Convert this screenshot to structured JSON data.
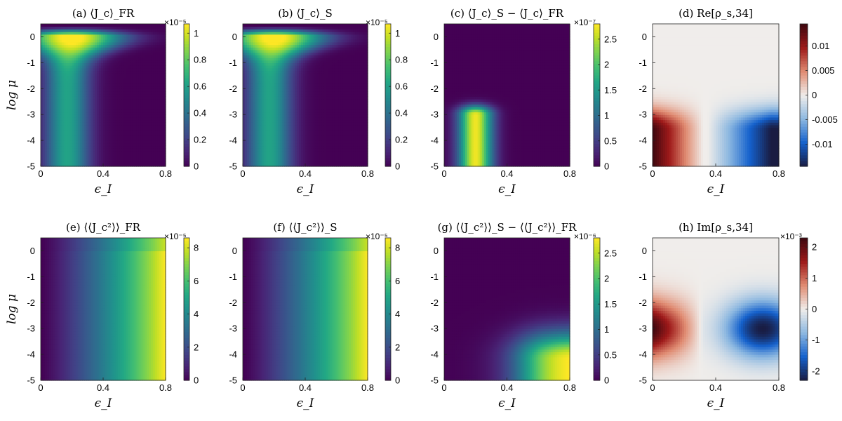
{
  "chart_data": [
    {
      "type": "heatmap",
      "panel": "a",
      "title": "(a) ⟨J_c⟩_FR",
      "xlabel": "ϵ_I",
      "ylabel": "log μ",
      "xlim": [
        0,
        0.8
      ],
      "ylim": [
        -5,
        0.5
      ],
      "x_ticks": [
        "0",
        "0.4",
        "0.8"
      ],
      "y_ticks": [
        "0",
        "-1",
        "-2",
        "-3",
        "-4",
        "-5"
      ],
      "colormap": "viridis",
      "colorbar_ticks": [
        "1",
        "0.8",
        "0.6",
        "0.4",
        "0.2",
        "0"
      ],
      "colorbar_multiplier": "×10⁻⁵",
      "clim": [
        0,
        1.07
      ],
      "pattern": "peak"
    },
    {
      "type": "heatmap",
      "panel": "b",
      "title": "(b) ⟨J_c⟩_S",
      "xlabel": "ϵ_I",
      "ylabel": "",
      "xlim": [
        0,
        0.8
      ],
      "ylim": [
        -5,
        0.5
      ],
      "x_ticks": [
        "0",
        "0.4",
        "0.8"
      ],
      "y_ticks": [
        "0",
        "-1",
        "-2",
        "-3",
        "-4",
        "-5"
      ],
      "colormap": "viridis",
      "colorbar_ticks": [
        "1",
        "0.8",
        "0.6",
        "0.4",
        "0.2",
        "0"
      ],
      "colorbar_multiplier": "×10⁻⁵",
      "clim": [
        0,
        1.07
      ],
      "pattern": "peak"
    },
    {
      "type": "heatmap",
      "panel": "c",
      "title": "(c) ⟨J_c⟩_S − ⟨J_c⟩_FR",
      "xlabel": "ϵ_I",
      "ylabel": "",
      "xlim": [
        0,
        0.8
      ],
      "ylim": [
        -5,
        0.5
      ],
      "x_ticks": [
        "0",
        "0.4",
        "0.8"
      ],
      "y_ticks": [
        "0",
        "-1",
        "-2",
        "-3",
        "-4",
        "-5"
      ],
      "colormap": "viridis",
      "colorbar_ticks": [
        "2.5",
        "2",
        "1.5",
        "1",
        "0.5",
        "0"
      ],
      "colorbar_multiplier": "×10⁻⁷",
      "clim": [
        0,
        2.8
      ],
      "pattern": "blob"
    },
    {
      "type": "heatmap",
      "panel": "d",
      "title": "(d) Re[ρ_s,34]",
      "xlabel": "ϵ_I",
      "ylabel": "",
      "xlim": [
        0,
        0.8
      ],
      "ylim": [
        -5,
        0.5
      ],
      "x_ticks": [
        "0",
        "0.4",
        "0.8"
      ],
      "y_ticks": [
        "0",
        "-1",
        "-2",
        "-3",
        "-4",
        "-5"
      ],
      "colormap": "diverging red-white-blue",
      "colorbar_ticks": [
        "0.01",
        "0.005",
        "0",
        "-0.005",
        "-0.01"
      ],
      "colorbar_multiplier": "",
      "clim": [
        -0.0145,
        0.0145
      ],
      "pattern": "div_low"
    },
    {
      "type": "heatmap",
      "panel": "e",
      "title": "(e) ⟨⟨J_c²⟩⟩_FR",
      "xlabel": "ϵ_I",
      "ylabel": "log μ",
      "xlim": [
        0,
        0.8
      ],
      "ylim": [
        -5,
        0.5
      ],
      "x_ticks": [
        "0",
        "0.4",
        "0.8"
      ],
      "y_ticks": [
        "0",
        "-1",
        "-2",
        "-3",
        "-4",
        "-5"
      ],
      "colormap": "viridis",
      "colorbar_ticks": [
        "8",
        "6",
        "4",
        "2",
        "0"
      ],
      "colorbar_multiplier": "×10⁻⁵",
      "clim": [
        0,
        8.6
      ],
      "pattern": "ramp"
    },
    {
      "type": "heatmap",
      "panel": "f",
      "title": "(f) ⟨⟨J_c²⟩⟩_S",
      "xlabel": "ϵ_I",
      "ylabel": "",
      "xlim": [
        0,
        0.8
      ],
      "ylim": [
        -5,
        0.5
      ],
      "x_ticks": [
        "0",
        "0.4",
        "0.8"
      ],
      "y_ticks": [
        "0",
        "-1",
        "-2",
        "-3",
        "-4",
        "-5"
      ],
      "colormap": "viridis",
      "colorbar_ticks": [
        "8",
        "6",
        "4",
        "2",
        "0"
      ],
      "colorbar_multiplier": "×10⁻⁵",
      "clim": [
        0,
        8.6
      ],
      "pattern": "ramp"
    },
    {
      "type": "heatmap",
      "panel": "g",
      "title": "(g) ⟨⟨J_c²⟩⟩_S − ⟨⟨J_c²⟩⟩_FR",
      "xlabel": "ϵ_I",
      "ylabel": "",
      "xlim": [
        0,
        0.8
      ],
      "ylim": [
        -5,
        0.5
      ],
      "x_ticks": [
        "0",
        "0.4",
        "0.8"
      ],
      "y_ticks": [
        "0",
        "-1",
        "-2",
        "-3",
        "-4",
        "-5"
      ],
      "colormap": "viridis",
      "colorbar_ticks": [
        "2.5",
        "2",
        "1.5",
        "1",
        "0.5",
        "0"
      ],
      "colorbar_multiplier": "×10⁻⁶",
      "clim": [
        0,
        2.8
      ],
      "pattern": "corner"
    },
    {
      "type": "heatmap",
      "panel": "h",
      "title": "(h) Im[ρ_s,34]",
      "xlabel": "ϵ_I",
      "ylabel": "",
      "xlim": [
        0,
        0.8
      ],
      "ylim": [
        -5,
        0.5
      ],
      "x_ticks": [
        "0",
        "0.4",
        "0.8"
      ],
      "y_ticks": [
        "0",
        "-1",
        "-2",
        "-3",
        "-4",
        "-5"
      ],
      "colormap": "diverging red-white-blue",
      "colorbar_ticks": [
        "2",
        "1",
        "0",
        "-1",
        "-2"
      ],
      "colorbar_multiplier": "×10⁻³",
      "clim": [
        -2.3,
        2.3
      ],
      "pattern": "div_mid"
    }
  ]
}
